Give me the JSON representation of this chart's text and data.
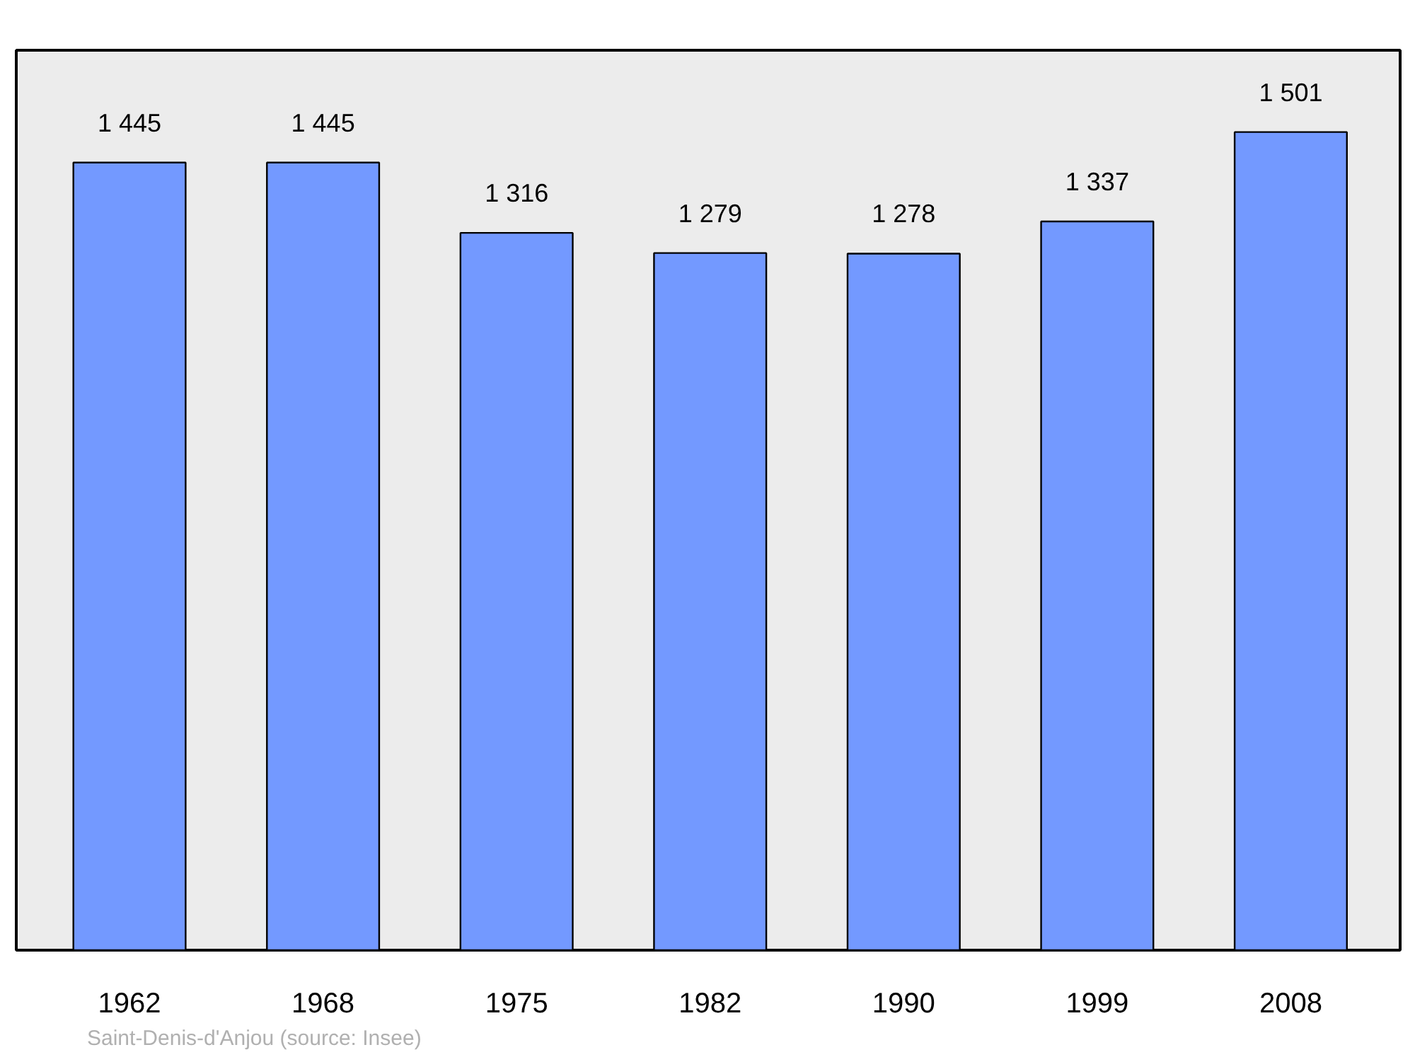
{
  "chart_data": {
    "type": "bar",
    "categories": [
      "1962",
      "1968",
      "1975",
      "1982",
      "1990",
      "1999",
      "2008"
    ],
    "values": [
      1445,
      1445,
      1316,
      1279,
      1278,
      1337,
      1501
    ],
    "value_labels": [
      "1 445",
      "1 445",
      "1 316",
      "1 279",
      "1 278",
      "1 337",
      "1 501"
    ],
    "color": "#7399ff",
    "annotations": [
      "Saint-Denis-d'Anjou    (source: Insee)"
    ]
  }
}
